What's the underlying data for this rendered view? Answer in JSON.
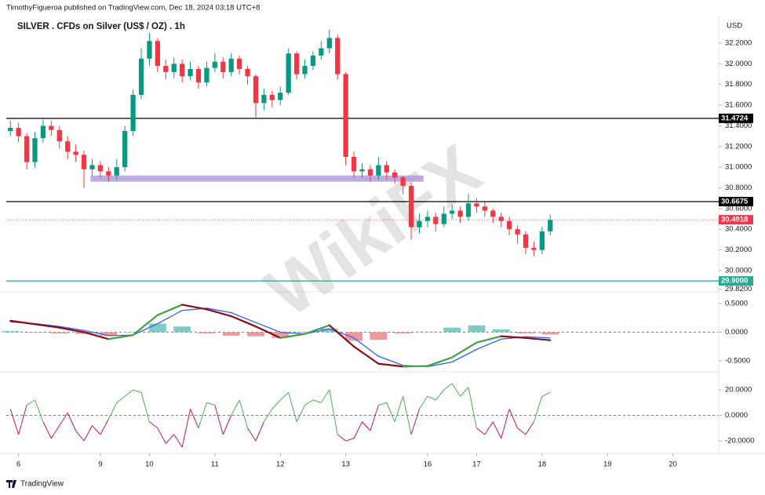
{
  "header": {
    "byline": "TimothyFigueroa published on TradingView.com, Dec 18, 2024 03:18 UTC+8",
    "currency": "USD",
    "footer": "TradingView",
    "watermark": "WikiFX"
  },
  "chart_data": [
    {
      "type": "candlestick",
      "title": "SILVER . CFDs on Silver (US$ / OZ) . 1h",
      "up_color": "#089981",
      "down_color": "#f23645",
      "x": [
        0,
        1,
        2,
        3,
        4,
        5,
        6,
        7,
        8,
        9,
        10,
        11,
        12,
        13,
        14,
        15,
        16,
        17,
        18,
        19,
        20,
        21,
        22,
        23,
        24,
        25,
        26,
        27,
        28,
        29,
        30,
        31,
        32,
        33,
        34,
        35,
        36,
        37,
        38,
        39,
        40,
        41,
        42,
        43,
        44,
        45,
        46,
        47,
        48,
        49,
        50,
        51,
        52,
        53,
        54,
        55,
        56,
        57,
        58,
        59,
        60,
        61,
        62,
        63,
        64,
        65,
        66
      ],
      "open": [
        31.35,
        31.38,
        31.3,
        31.05,
        31.28,
        31.4,
        31.36,
        31.25,
        31.15,
        31.12,
        30.98,
        31.02,
        30.96,
        30.92,
        31.0,
        31.35,
        31.7,
        32.05,
        32.22,
        31.98,
        31.92,
        32.0,
        31.88,
        31.95,
        31.82,
        31.96,
        32.02,
        31.92,
        32.05,
        31.95,
        31.88,
        31.62,
        31.7,
        31.65,
        31.72,
        32.1,
        31.9,
        31.98,
        32.08,
        32.15,
        32.25,
        31.9,
        31.1,
        30.96,
        30.98,
        30.92,
        31.02,
        30.95,
        30.9,
        30.82,
        30.42,
        30.48,
        30.52,
        30.45,
        30.55,
        30.58,
        30.52,
        30.65,
        30.62,
        30.58,
        30.52,
        30.48,
        30.4,
        30.35,
        30.22,
        30.2,
        30.38
      ],
      "high": [
        31.45,
        31.43,
        31.33,
        31.34,
        31.46,
        31.45,
        31.4,
        31.3,
        31.22,
        31.16,
        31.08,
        31.06,
        31.0,
        31.08,
        31.4,
        31.75,
        32.15,
        32.3,
        32.25,
        32.04,
        32.06,
        32.04,
        32.02,
        31.98,
        32.02,
        32.1,
        32.06,
        32.1,
        32.08,
        31.98,
        31.9,
        31.76,
        31.74,
        31.78,
        32.15,
        32.12,
        32.04,
        32.12,
        32.22,
        32.33,
        32.28,
        31.92,
        31.15,
        31.04,
        31.02,
        31.1,
        31.06,
        30.98,
        30.92,
        30.85,
        30.55,
        30.58,
        30.56,
        30.62,
        30.64,
        30.62,
        30.74,
        30.7,
        30.66,
        30.6,
        30.56,
        30.52,
        30.44,
        30.38,
        30.28,
        30.42,
        30.54
      ],
      "low": [
        31.3,
        31.24,
        30.98,
        31.0,
        31.24,
        31.3,
        31.18,
        31.08,
        31.05,
        30.8,
        30.92,
        30.9,
        30.86,
        30.88,
        30.96,
        31.3,
        31.66,
        31.98,
        31.92,
        31.85,
        31.86,
        31.82,
        31.84,
        31.76,
        31.78,
        31.92,
        31.86,
        31.88,
        31.9,
        31.8,
        31.48,
        31.55,
        31.58,
        31.6,
        31.7,
        31.85,
        31.86,
        31.94,
        32.04,
        32.1,
        31.85,
        31.02,
        30.9,
        30.9,
        30.86,
        30.88,
        30.88,
        30.84,
        30.74,
        30.3,
        30.36,
        30.42,
        30.38,
        30.42,
        30.5,
        30.46,
        30.48,
        30.56,
        30.52,
        30.46,
        30.42,
        30.34,
        30.26,
        30.16,
        30.14,
        30.16,
        30.34
      ],
      "close": [
        31.38,
        31.3,
        31.05,
        31.28,
        31.4,
        31.36,
        31.25,
        31.15,
        31.12,
        30.98,
        31.02,
        30.96,
        30.92,
        31.0,
        31.35,
        31.7,
        32.05,
        32.22,
        31.98,
        31.92,
        32.0,
        31.88,
        31.95,
        31.82,
        31.96,
        32.02,
        31.92,
        32.05,
        31.95,
        31.88,
        31.62,
        31.7,
        31.65,
        31.72,
        32.1,
        31.9,
        31.98,
        32.08,
        32.15,
        32.25,
        31.9,
        31.1,
        30.96,
        30.98,
        30.92,
        31.02,
        30.95,
        30.9,
        30.82,
        30.42,
        30.48,
        30.52,
        30.45,
        30.55,
        30.58,
        30.52,
        30.65,
        30.62,
        30.58,
        30.52,
        30.48,
        30.4,
        30.35,
        30.22,
        30.2,
        30.38,
        30.49
      ],
      "xlim": [
        -0.5,
        86.5
      ],
      "xticks": [
        {
          "value": 1,
          "label": "6"
        },
        {
          "value": 11,
          "label": "9"
        },
        {
          "value": 17,
          "label": "10"
        },
        {
          "value": 25,
          "label": "11"
        },
        {
          "value": 33,
          "label": "12"
        },
        {
          "value": 41,
          "label": "13"
        },
        {
          "value": 51,
          "label": "16"
        },
        {
          "value": 57,
          "label": "17"
        },
        {
          "value": 65,
          "label": "18"
        },
        {
          "value": 73,
          "label": "19"
        },
        {
          "value": 81,
          "label": "20"
        }
      ],
      "ylim": [
        29.81,
        32.45
      ],
      "yticks": [
        {
          "value": 29.82,
          "label": "29.8200"
        },
        {
          "value": 30.0,
          "label": "30.0000"
        },
        {
          "value": 30.2,
          "label": "30.2000"
        },
        {
          "value": 30.4,
          "label": "30.4000"
        },
        {
          "value": 30.6,
          "label": "30.6000"
        },
        {
          "value": 30.8,
          "label": "30.8000"
        },
        {
          "value": 31.0,
          "label": "31.0000"
        },
        {
          "value": 31.2,
          "label": "31.2000"
        },
        {
          "value": 31.4,
          "label": "31.4000"
        },
        {
          "value": 31.6,
          "label": "31.6000"
        },
        {
          "value": 31.8,
          "label": "31.8000"
        },
        {
          "value": 32.0,
          "label": "32.0000"
        },
        {
          "value": 32.2,
          "label": "32.2000"
        }
      ],
      "levels": [
        {
          "value": 31.4724,
          "label": "31.4724",
          "color": "#000000",
          "style": "solid"
        },
        {
          "value": 30.6675,
          "label": "30.6675",
          "color": "#000000",
          "style": "solid"
        },
        {
          "value": 29.9,
          "label": "29.9000",
          "color": "#22ab94",
          "style": "solid"
        },
        {
          "value": 30.4918,
          "label": "30.4918",
          "color": "#f23645",
          "style": "dotted"
        }
      ],
      "zone": {
        "low": 30.86,
        "high": 30.92,
        "x": [
          9.8,
          50.5
        ],
        "color": "#b39ddb"
      }
    },
    {
      "type": "macd",
      "x": [
        0,
        3,
        6,
        9,
        12,
        15,
        18,
        21,
        24,
        27,
        30,
        33,
        36,
        39,
        42,
        45,
        48,
        51,
        54,
        57,
        60,
        63,
        66
      ],
      "series": [
        {
          "values": [
            0.2,
            0.14,
            0.08,
            0.0,
            -0.12,
            -0.05,
            0.3,
            0.48,
            0.4,
            0.28,
            0.1,
            -0.1,
            -0.03,
            0.12,
            -0.25,
            -0.55,
            -0.6,
            -0.59,
            -0.44,
            -0.18,
            -0.07,
            -0.1,
            -0.14
          ],
          "rising_color": "#43a047",
          "falling_color": "#8b0e16"
        },
        {
          "values": [
            0.18,
            0.15,
            0.1,
            0.03,
            -0.06,
            -0.05,
            0.15,
            0.38,
            0.42,
            0.34,
            0.17,
            0.0,
            -0.03,
            0.06,
            -0.1,
            -0.42,
            -0.58,
            -0.6,
            -0.52,
            -0.3,
            -0.12,
            -0.08,
            -0.1
          ],
          "color": "#2962ff"
        }
      ],
      "histogram": [
        0.02,
        -0.01,
        -0.02,
        -0.03,
        -0.06,
        0,
        0.15,
        0.1,
        -0.02,
        -0.06,
        -0.07,
        -0.1,
        0,
        0.06,
        -0.15,
        -0.13,
        -0.02,
        0.01,
        0.08,
        0.12,
        0.05,
        -0.02,
        -0.04
      ],
      "hist_up_color": "#80cbc4",
      "hist_down_color": "#ef9a9a",
      "xlim": [
        -0.5,
        86.5
      ],
      "ylim": [
        -0.637,
        0.664
      ],
      "yticks": [
        {
          "value": 0.5,
          "label": "0.5000"
        },
        {
          "value": 0,
          "label": "0.0000"
        },
        {
          "value": -0.5,
          "label": "-0.5000"
        }
      ]
    },
    {
      "type": "oscillator",
      "x": [
        0,
        1,
        2,
        3,
        4,
        5,
        6,
        7,
        8,
        9,
        10,
        11,
        12,
        13,
        14,
        15,
        16,
        17,
        18,
        19,
        20,
        21,
        22,
        23,
        24,
        25,
        26,
        27,
        28,
        29,
        30,
        31,
        32,
        33,
        34,
        35,
        36,
        37,
        38,
        39,
        40,
        41,
        42,
        43,
        44,
        45,
        46,
        47,
        48,
        49,
        50,
        51,
        52,
        53,
        54,
        55,
        56,
        57,
        58,
        59,
        60,
        61,
        62,
        63,
        64,
        65,
        66
      ],
      "values": [
        5,
        -15,
        8,
        12,
        -5,
        -18,
        -8,
        2,
        -12,
        -20,
        -8,
        -15,
        -3,
        10,
        15,
        20,
        18,
        -5,
        -10,
        -22,
        -15,
        -25,
        5,
        -10,
        10,
        8,
        -15,
        0,
        12,
        -10,
        -20,
        -5,
        5,
        12,
        18,
        -5,
        8,
        12,
        10,
        20,
        -15,
        -20,
        -18,
        -5,
        -12,
        8,
        10,
        -5,
        15,
        -15,
        5,
        15,
        12,
        20,
        25,
        15,
        22,
        -10,
        -15,
        -5,
        -18,
        5,
        -10,
        -15,
        -5,
        15,
        18
      ],
      "above_color": "#4caf50",
      "below_color": "#c2185b",
      "xlim": [
        -0.5,
        86.5
      ],
      "ylim": [
        -28,
        31.7
      ],
      "yticks": [
        {
          "value": 20,
          "label": "20.0000"
        },
        {
          "value": 0,
          "label": "0.0000"
        },
        {
          "value": -20,
          "label": "-20.0000"
        }
      ]
    }
  ]
}
